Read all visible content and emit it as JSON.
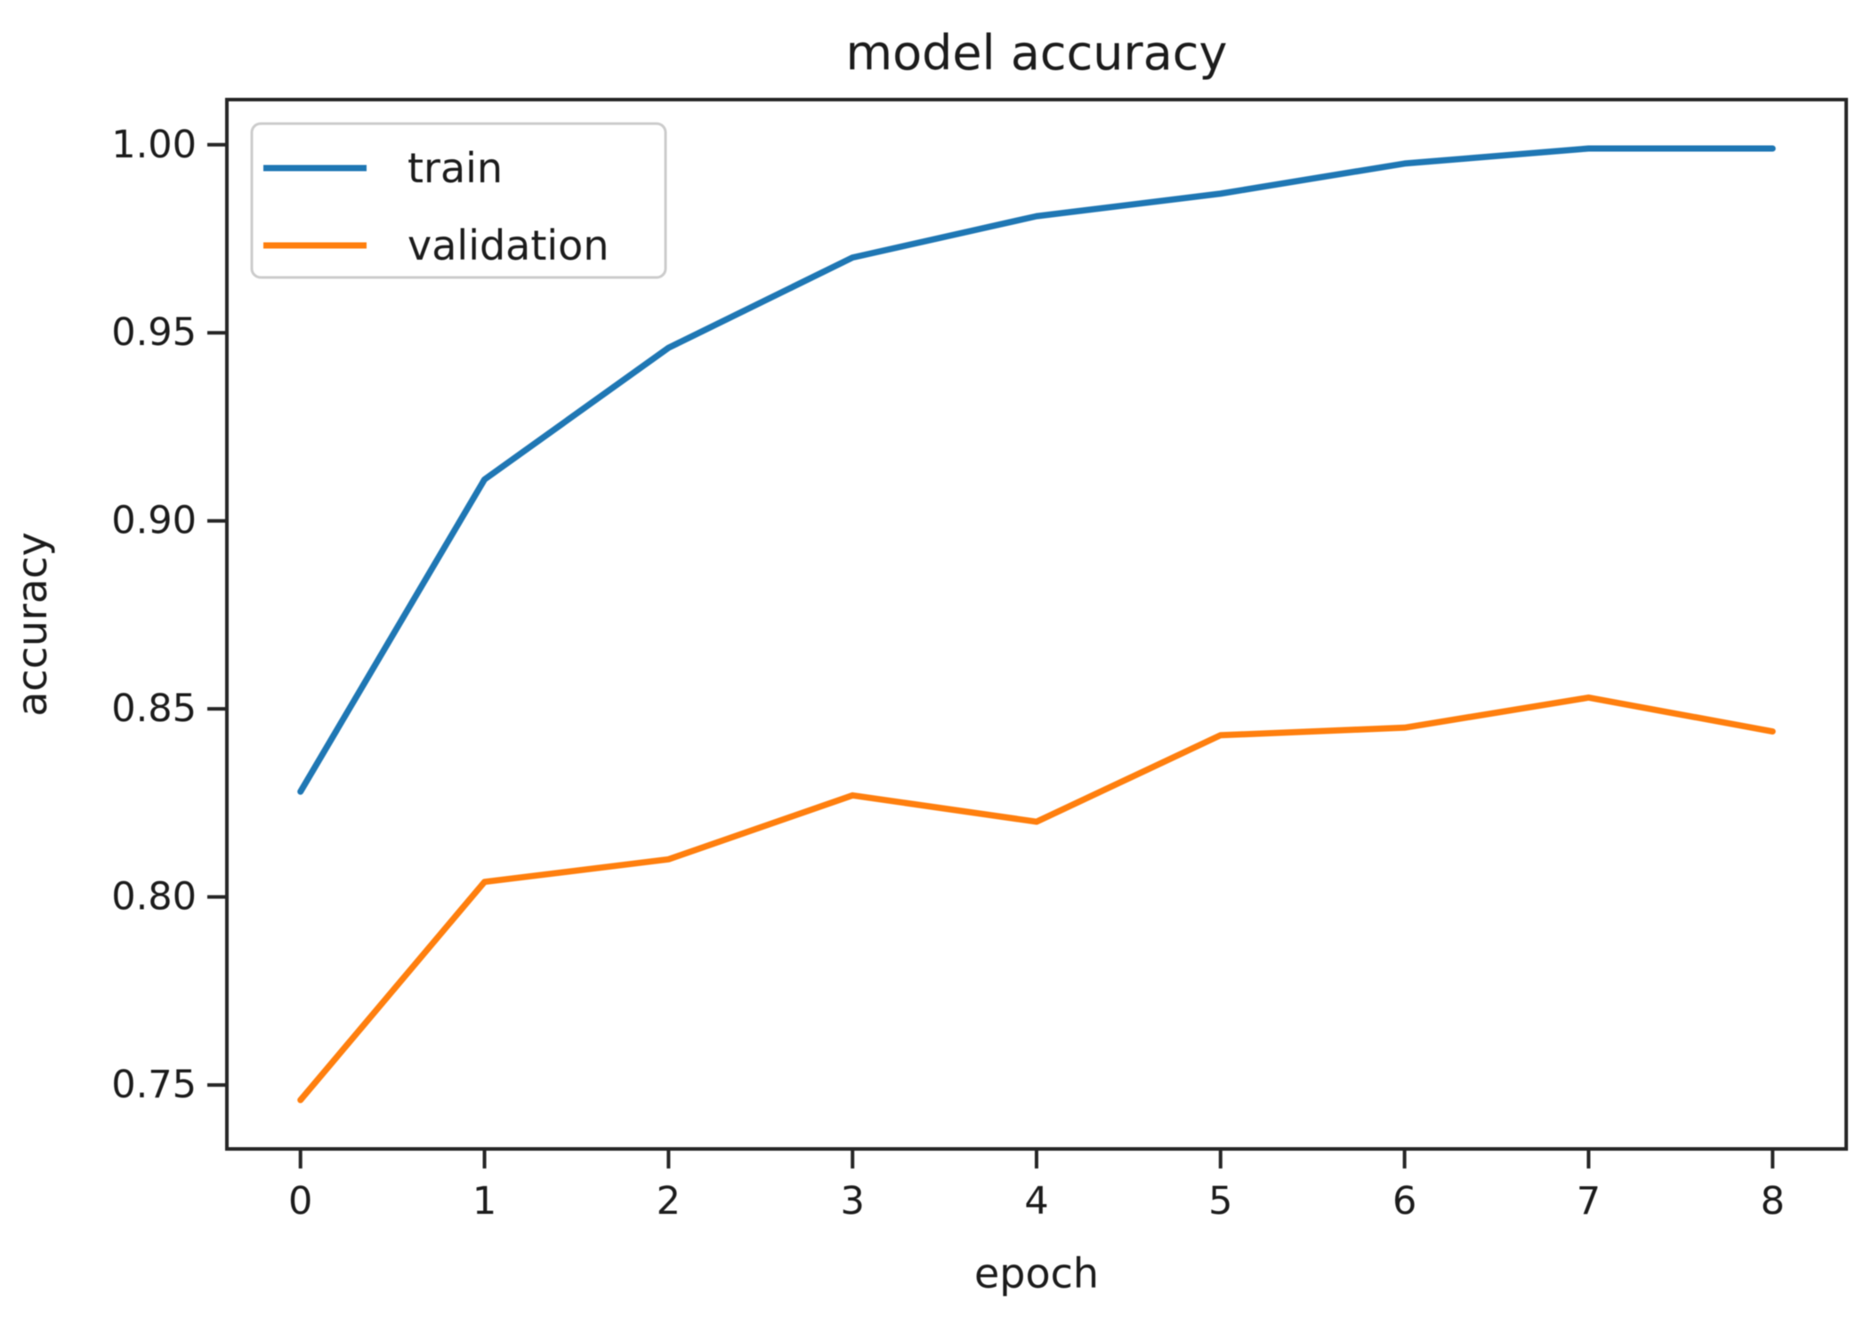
{
  "chart_data": {
    "type": "line",
    "title": "model accuracy",
    "xlabel": "epoch",
    "ylabel": "accuracy",
    "x": [
      0,
      1,
      2,
      3,
      4,
      5,
      6,
      7,
      8
    ],
    "series": [
      {
        "name": "train",
        "color": "#1f77b4",
        "values": [
          0.828,
          0.911,
          0.946,
          0.97,
          0.981,
          0.987,
          0.995,
          0.999,
          0.999
        ]
      },
      {
        "name": "validation",
        "color": "#ff7f0e",
        "values": [
          0.746,
          0.804,
          0.81,
          0.827,
          0.82,
          0.843,
          0.845,
          0.853,
          0.844
        ]
      }
    ],
    "xlim": [
      -0.4,
      8.4
    ],
    "ylim": [
      0.733,
      1.012
    ],
    "xticks": [
      0,
      1,
      2,
      3,
      4,
      5,
      6,
      7,
      8
    ],
    "xtick_labels": [
      "0",
      "1",
      "2",
      "3",
      "4",
      "5",
      "6",
      "7",
      "8"
    ],
    "yticks": [
      0.75,
      0.8,
      0.85,
      0.9,
      0.95,
      1.0
    ],
    "ytick_labels": [
      "0.75",
      "0.80",
      "0.85",
      "0.90",
      "0.95",
      "1.00"
    ],
    "grid": false,
    "legend_position": "upper left",
    "legend_labels": [
      "train",
      "validation"
    ],
    "colors": {
      "frame": "#262626",
      "text": "#1c1c1c",
      "legend_border": "#cccccc",
      "background": "#ffffff"
    }
  }
}
